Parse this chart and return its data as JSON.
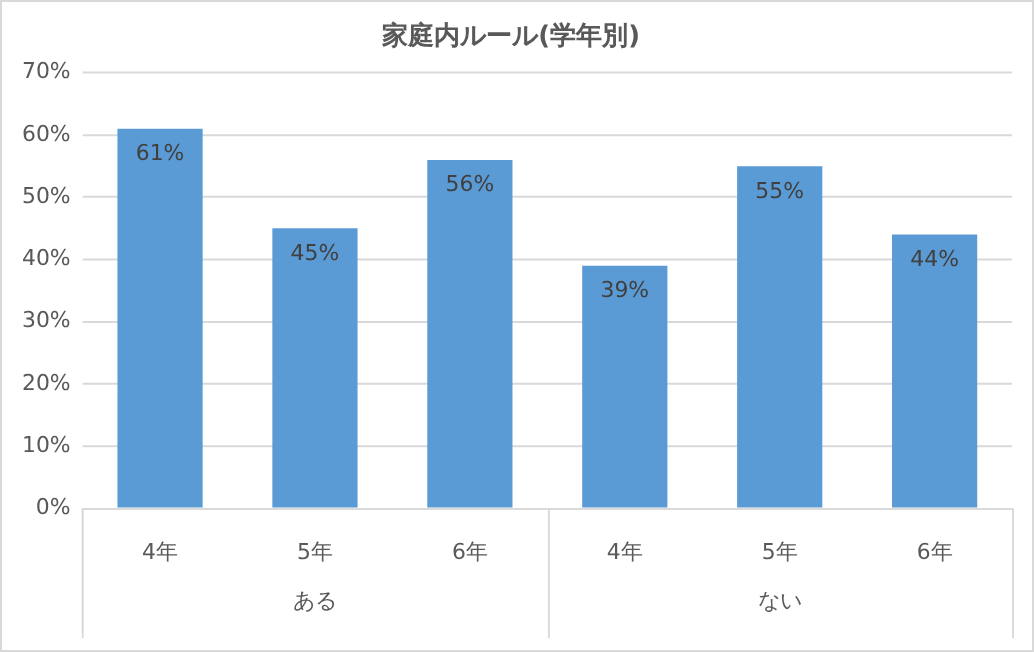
{
  "chart_data": {
    "type": "bar",
    "title": "家庭内ルール(学年別)",
    "categories": [
      "4年",
      "5年",
      "6年",
      "4年",
      "5年",
      "6年"
    ],
    "values": [
      61,
      45,
      56,
      39,
      55,
      44
    ],
    "value_labels": [
      "61%",
      "45%",
      "56%",
      "39%",
      "55%",
      "44%"
    ],
    "color": "#5b9bd5",
    "ylim": [
      0,
      70
    ],
    "yticks": [
      {
        "value": 0,
        "label": "0%"
      },
      {
        "value": 10,
        "label": "10%"
      },
      {
        "value": 20,
        "label": "20%"
      },
      {
        "value": 30,
        "label": "30%"
      },
      {
        "value": 40,
        "label": "40%"
      },
      {
        "value": 50,
        "label": "50%"
      },
      {
        "value": 60,
        "label": "60%"
      },
      {
        "value": 70,
        "label": "70%"
      }
    ],
    "grid": "y",
    "annotations": [
      "ある",
      "ない"
    ]
  }
}
